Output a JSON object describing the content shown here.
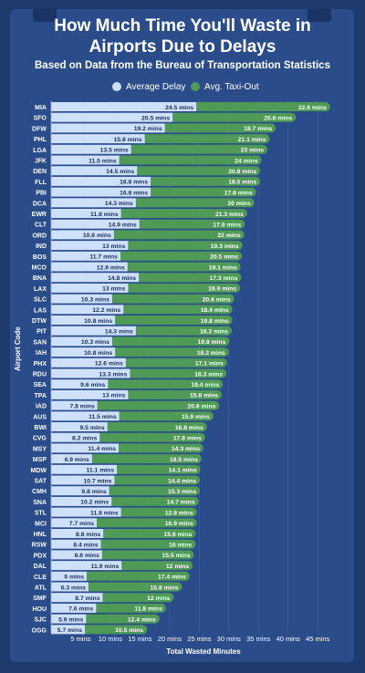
{
  "page": {
    "title_line1": "How Much Time You'll Waste in",
    "title_line2": "Airports Due to Delays",
    "subtitle": "Based on Data from the Bureau of Transportation Statistics"
  },
  "colors": {
    "background": "#1f3b6e",
    "panel": "#2a4c8a",
    "avg_delay": "#cfe0fb",
    "taxi_out": "#4f9a57"
  },
  "chart_data": {
    "type": "bar",
    "orientation": "horizontal",
    "stacked": true,
    "ylabel": "Airport Code",
    "xlabel": "Total Wasted Minutes",
    "xlim": [
      0,
      47
    ],
    "xticks": [
      5,
      10,
      15,
      20,
      25,
      30,
      35,
      40,
      45
    ],
    "xtick_labels": [
      "5 mins",
      "10 mins",
      "15 mins",
      "20 mins",
      "25 mins",
      "30 mins",
      "35 mins",
      "40 mins",
      "45 mins"
    ],
    "value_suffix": " mins",
    "legend": [
      "Average Delay",
      "Avg. Taxi-Out"
    ],
    "categories": [
      "MIA",
      "SFO",
      "DFW",
      "PHL",
      "LGA",
      "JFK",
      "DEN",
      "FLL",
      "PBI",
      "DCA",
      "EWR",
      "CLT",
      "ORD",
      "IND",
      "BOS",
      "MCO",
      "BNA",
      "LAX",
      "SLC",
      "LAS",
      "DTW",
      "PIT",
      "SAN",
      "IAH",
      "PHX",
      "RDU",
      "SEA",
      "TPA",
      "IAD",
      "AUS",
      "BWI",
      "CVG",
      "MSY",
      "MSP",
      "MDW",
      "SAT",
      "CMH",
      "SNA",
      "STL",
      "MCI",
      "HNL",
      "RSW",
      "PDX",
      "DAL",
      "CLE",
      "ATL",
      "SMF",
      "HOU",
      "SJC",
      "OGG"
    ],
    "series": [
      {
        "name": "Average Delay",
        "values": [
          24.5,
          20.5,
          19.2,
          15.8,
          13.5,
          11.5,
          14.5,
          16.8,
          16.8,
          14.3,
          11.8,
          14.9,
          10.6,
          13,
          11.7,
          12.9,
          14.8,
          13,
          10.3,
          12.2,
          10.8,
          14.3,
          10.3,
          10.8,
          12.6,
          13.3,
          9.6,
          13,
          7.8,
          11.5,
          9.5,
          8.2,
          11.4,
          6.9,
          11.1,
          10.7,
          9.8,
          10.2,
          11.8,
          7.7,
          8.8,
          8.4,
          8.6,
          11.9,
          6,
          6.3,
          8.7,
          7.6,
          5.9,
          5.7
        ]
      },
      {
        "name": "Avg. Taxi-Out",
        "values": [
          22.6,
          20.8,
          18.7,
          21.1,
          23,
          24,
          20.8,
          18.5,
          17.8,
          20,
          21.3,
          17.8,
          22,
          19.3,
          20.5,
          19.1,
          17.3,
          18.9,
          20.6,
          18.4,
          19.8,
          16.2,
          19.8,
          19.2,
          17.1,
          16.3,
          19.4,
          15.8,
          20.6,
          15.9,
          16.8,
          17.8,
          14.3,
          18.5,
          14.1,
          14.4,
          15.3,
          14.7,
          12.8,
          16.9,
          15.6,
          16,
          15.5,
          12,
          17.4,
          15.8,
          12,
          11.8,
          12.4,
          10.5
        ]
      }
    ]
  }
}
